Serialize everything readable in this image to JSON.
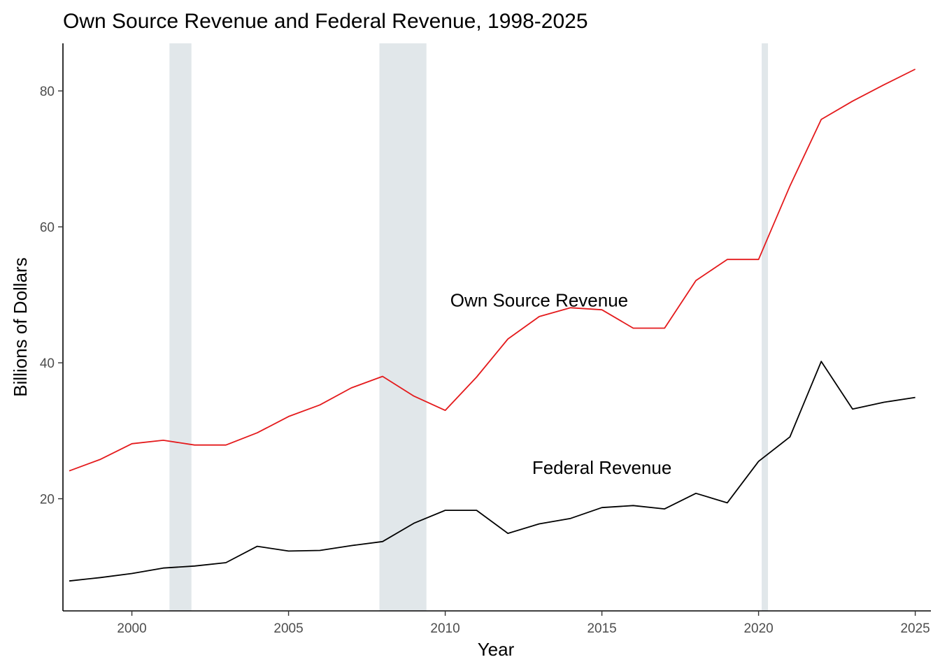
{
  "chart_data": {
    "type": "line",
    "title": "Own Source Revenue and Federal Revenue, 1998-2025",
    "xlabel": "Year",
    "ylabel": "Billions of Dollars",
    "xlim": [
      1997.8,
      2025.5
    ],
    "ylim": [
      3.5,
      87
    ],
    "xticks": [
      2000,
      2005,
      2010,
      2015,
      2020,
      2025
    ],
    "yticks": [
      20,
      40,
      60,
      80
    ],
    "grid": false,
    "legend": "none",
    "shaded_periods": [
      {
        "start": 2001.2,
        "end": 2001.9
      },
      {
        "start": 2007.9,
        "end": 2009.4
      },
      {
        "start": 2020.1,
        "end": 2020.3
      }
    ],
    "x": [
      1998,
      1999,
      2000,
      2001,
      2002,
      2003,
      2004,
      2005,
      2006,
      2007,
      2008,
      2009,
      2010,
      2011,
      2012,
      2013,
      2014,
      2015,
      2016,
      2017,
      2018,
      2019,
      2020,
      2021,
      2022,
      2023,
      2024,
      2025
    ],
    "series": [
      {
        "name": "Own Source Revenue",
        "color": "#e41a1c",
        "values": [
          24.1,
          25.8,
          28.1,
          28.6,
          27.9,
          27.9,
          29.7,
          32.1,
          33.8,
          36.3,
          38.0,
          35.1,
          33.0,
          37.9,
          43.5,
          46.8,
          48.1,
          47.8,
          45.1,
          45.1,
          52.1,
          55.2,
          55.2,
          66.0,
          75.8,
          78.5,
          80.9,
          83.2
        ]
      },
      {
        "name": "Federal Revenue",
        "color": "#000000",
        "values": [
          7.9,
          8.4,
          9.0,
          9.8,
          10.1,
          10.6,
          13.0,
          12.3,
          12.4,
          13.1,
          13.7,
          16.4,
          18.3,
          18.3,
          14.9,
          16.3,
          17.1,
          18.7,
          19.0,
          18.5,
          20.8,
          19.4,
          25.5,
          29.1,
          40.2,
          33.2,
          34.2,
          34.9
        ]
      }
    ],
    "annotations": [
      {
        "text": "Own Source Revenue",
        "x": 2013.0,
        "y": 49.2
      },
      {
        "text": "Federal Revenue",
        "x": 2015.0,
        "y": 24.6
      }
    ]
  }
}
